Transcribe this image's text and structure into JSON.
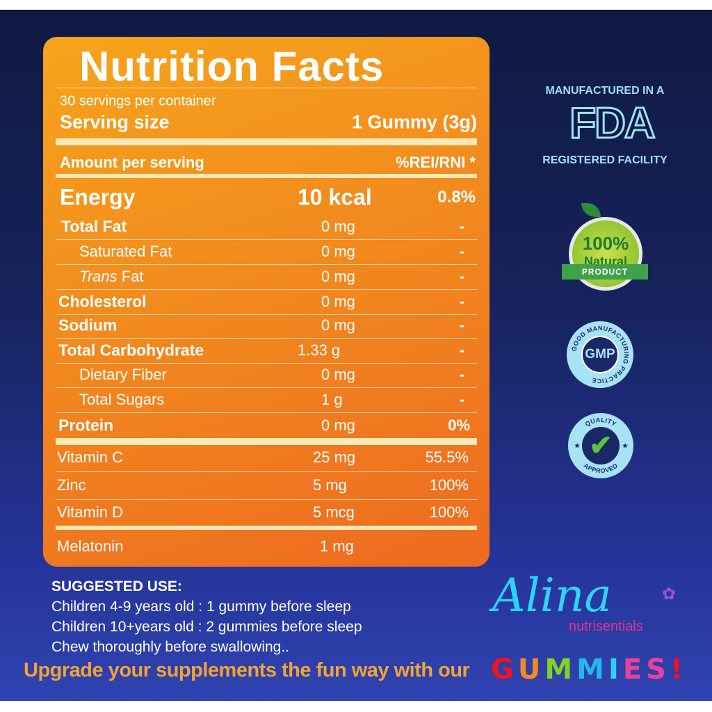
{
  "panel": {
    "title": "Nutrition Facts",
    "servings": "30 servings per container",
    "serving_size_label": "Serving size",
    "serving_size_value": "1 Gummy (3g)",
    "amount_label": "Amount per serving",
    "rei_label": "%REI/RNI *",
    "energy": {
      "label": "Energy",
      "amount": "10 kcal",
      "percent": "0.8%"
    },
    "rows": [
      {
        "label": "Total Fat",
        "amount": "0 mg",
        "percent": "-",
        "bold": true
      },
      {
        "label": "Saturated Fat",
        "amount": "0 mg",
        "percent": "-",
        "indent": true
      },
      {
        "label": "Trans",
        "label2": " Fat",
        "amount": "0 mg",
        "percent": "-",
        "indent": true,
        "italic": true
      },
      {
        "label": "Cholesterol",
        "amount": "0 mg",
        "percent": "-",
        "bold": true
      },
      {
        "label": "Sodium",
        "amount": "0 mg",
        "percent": "-",
        "bold": true
      },
      {
        "label": "Total Carbohydrate",
        "amount": "1.33 g",
        "percent": "-",
        "bold": true
      },
      {
        "label": "Dietary Fiber",
        "amount": "0 mg",
        "percent": "-",
        "indent": true
      },
      {
        "label": "Total Sugars",
        "amount": "1 g",
        "percent": "-",
        "indent": true
      },
      {
        "label": "Protein",
        "amount": "0 mg",
        "percent": "0%",
        "bold": true
      }
    ],
    "vitamins": [
      {
        "label": "Vitamin C",
        "amount": "25 mg",
        "percent": "55.5%"
      },
      {
        "label": "Zinc",
        "amount": "5 mg",
        "percent": "100%"
      },
      {
        "label": "Vitamin D",
        "amount": "5 mcg",
        "percent": "100%"
      }
    ],
    "melatonin": {
      "label": "Melatonin",
      "amount": "1 mg"
    }
  },
  "badges": {
    "fda_top": "MANUFACTURED IN A",
    "fda_logo": "FDA",
    "fda_bottom": "REGISTERED FACILITY",
    "natural": {
      "big": "100%",
      "mid": "Natural",
      "ribbon": "PRODUCT"
    },
    "gmp": {
      "ring": "GOOD MANUFACTURING PRACTICE",
      "center": "GMP"
    },
    "quality": {
      "top": "QUALITY",
      "bottom": "APPROVED"
    }
  },
  "suggested_use": {
    "heading": "SUGGESTED USE:",
    "lines": [
      "Children 4-9 years old : 1 gummy before sleep",
      "Children 10+years old : 2 gummies before sleep",
      "Chew thoroughly before swallowing.."
    ]
  },
  "promo": "Upgrade your supplements the fun way with our",
  "gummies": {
    "letters": [
      "G",
      "U",
      "M",
      "M",
      "I",
      "E",
      "S",
      "!"
    ],
    "colors": [
      "#f0141e",
      "#f5891f",
      "#7fd321",
      "#21b9e8",
      "#2fd0f2",
      "#e8419c",
      "#e8419c",
      "#f0141e"
    ]
  },
  "brand": {
    "name": "Alina",
    "sub": "nutrisentials"
  }
}
